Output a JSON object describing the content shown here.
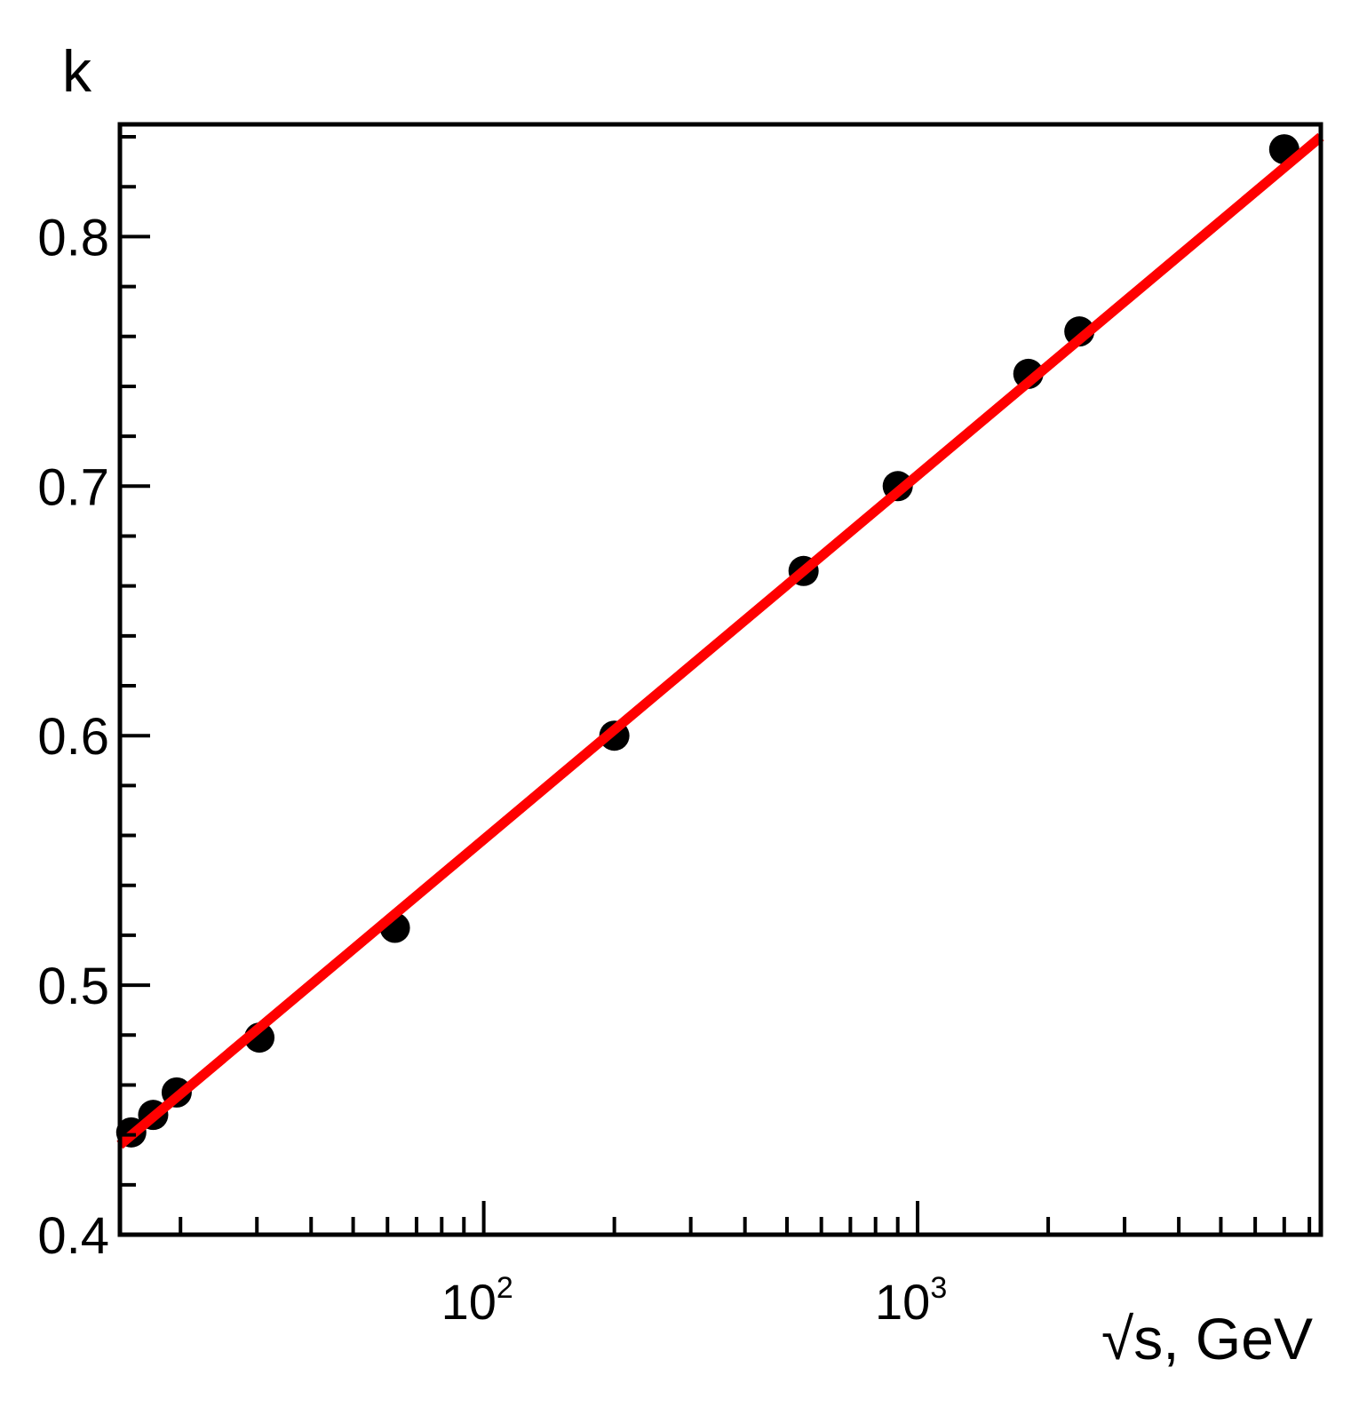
{
  "chart_data": {
    "type": "scatter",
    "xlabel": "√s, GeV",
    "ylabel": "k",
    "xscale": "log",
    "xlim": [
      14.5,
      8500
    ],
    "ylim": [
      0.4,
      0.845
    ],
    "y_ticks": [
      "0.4",
      "0.5",
      "0.6",
      "0.7",
      "0.8"
    ],
    "x_ticks": [
      {
        "value": 100,
        "base": "10",
        "exp": "2"
      },
      {
        "value": 1000,
        "base": "10",
        "exp": "3"
      }
    ],
    "grid": false,
    "legend": "none",
    "series": [
      {
        "kind": "points",
        "color": "#000000",
        "x": [
          15.4,
          17.3,
          19.6,
          30.4,
          62.4,
          200,
          546,
          900,
          1800,
          2360,
          7000
        ],
        "y": [
          0.441,
          0.448,
          0.457,
          0.479,
          0.523,
          0.6,
          0.666,
          0.7,
          0.745,
          0.762,
          0.835
        ]
      },
      {
        "kind": "line",
        "color": "#ff0000",
        "x": [
          14.5,
          8500
        ],
        "y": [
          0.436,
          0.84
        ]
      }
    ]
  }
}
